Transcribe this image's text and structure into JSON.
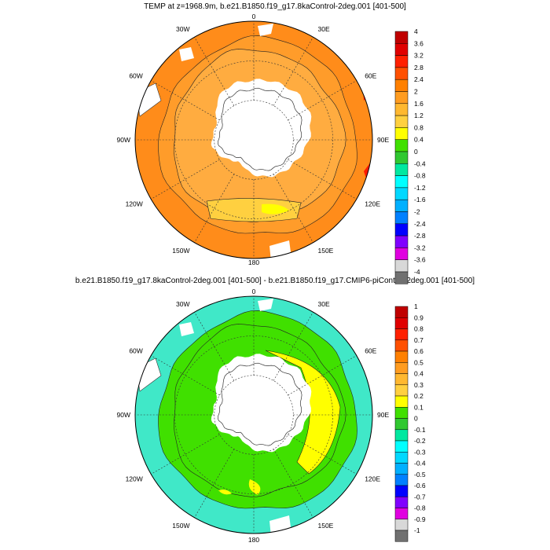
{
  "panels": [
    {
      "title": "TEMP at z=1968.9m, b.e21.B1850.f19_g17.8kaControl-2deg.001 [401-500]",
      "lon_labels": [
        "0",
        "30E",
        "60E",
        "90E",
        "120E",
        "150E",
        "180",
        "150W",
        "120W",
        "90W",
        "60W",
        "30W"
      ],
      "colorbar_labels": [
        "4",
        "3.6",
        "3.2",
        "2.8",
        "2.4",
        "2",
        "1.6",
        "1.2",
        "0.8",
        "0.4",
        "0",
        "-0.4",
        "-0.8",
        "-1.2",
        "-1.6",
        "-2",
        "-2.4",
        "-2.8",
        "-3.2",
        "-3.6",
        "-4"
      ],
      "colorbar_colors": [
        "#c00000",
        "#e00000",
        "#ff2000",
        "#ff5000",
        "#ff8000",
        "#ff9c20",
        "#ffb830",
        "#ffd040",
        "#ffff00",
        "#40e000",
        "#30c830",
        "#00e8a0",
        "#00ffff",
        "#00d8ff",
        "#00b0ff",
        "#0080ff",
        "#0000ff",
        "#8000ff",
        "#e000e0",
        "#d8d8d8",
        "#707070"
      ],
      "field_colors": {
        "outer": "#ff8c1a",
        "mid": "#ff9c2a",
        "inner": "#ffac40",
        "warm_east": "#ff1a00",
        "cold_shelf": "#ffd040",
        "cold_core": "#ffff00"
      }
    },
    {
      "title": "b.e21.B1850.f19_g17.8kaControl-2deg.001 [401-500] - b.e21.B1850.f19_g17.CMIP6-piControl-2deg.001 [401-500]",
      "lon_labels": [
        "0",
        "30E",
        "60E",
        "90E",
        "120E",
        "150E",
        "180",
        "150W",
        "120W",
        "90W",
        "60W",
        "30W"
      ],
      "colorbar_labels": [
        "1",
        "0.9",
        "0.8",
        "0.7",
        "0.6",
        "0.5",
        "0.4",
        "0.3",
        "0.2",
        "0.1",
        "0",
        "-0.1",
        "-0.2",
        "-0.3",
        "-0.4",
        "-0.5",
        "-0.6",
        "-0.7",
        "-0.8",
        "-0.9",
        "-1"
      ],
      "colorbar_colors": [
        "#c00000",
        "#e00000",
        "#ff2000",
        "#ff5000",
        "#ff8000",
        "#ff9c20",
        "#ffb830",
        "#ffd040",
        "#ffff00",
        "#40e000",
        "#30c830",
        "#00e8a0",
        "#00ffff",
        "#00d8ff",
        "#00b0ff",
        "#0080ff",
        "#0000ff",
        "#8000ff",
        "#e000e0",
        "#d8d8d8",
        "#707070"
      ],
      "field_colors": {
        "outer": "#40e8c8",
        "mid": "#40e000",
        "inner": "#40e000",
        "warm_east": "#ffff00",
        "cold_shelf": "#ffff00",
        "cold_core": "#ffff00"
      }
    }
  ]
}
